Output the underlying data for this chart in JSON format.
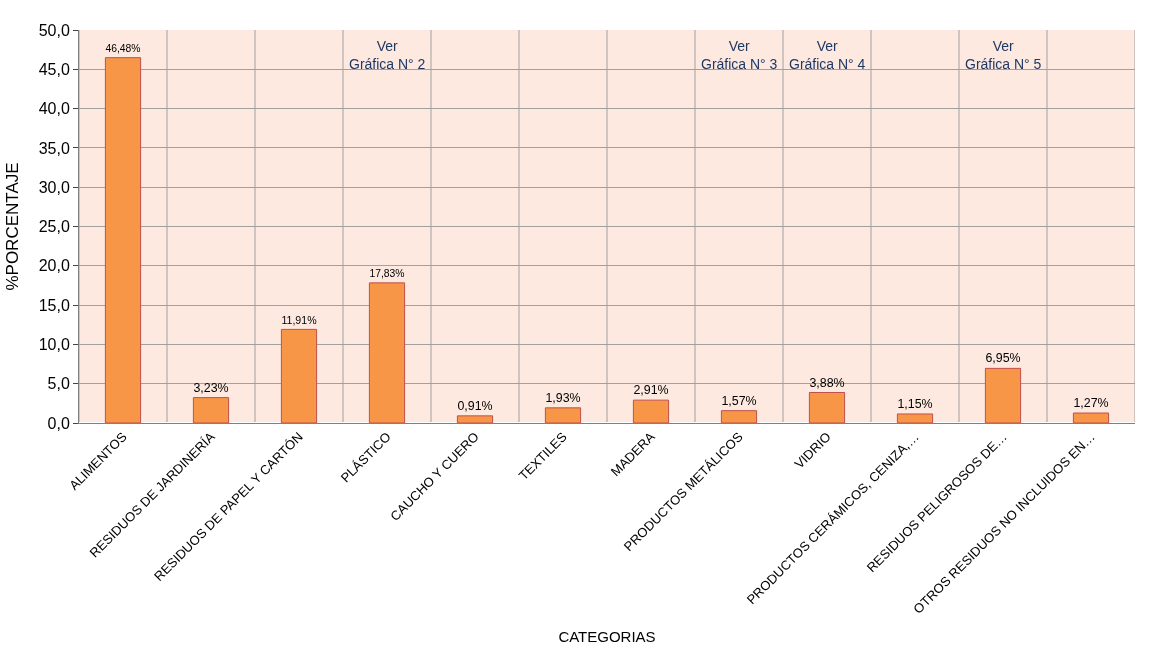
{
  "chart_data": {
    "type": "bar",
    "xlabel": "CATEGORIAS",
    "ylabel": "%PORCENTAJE",
    "categories": [
      "ALIMENTOS",
      "RESIDUOS DE JARDINERÍA",
      "RESIDUOS DE PAPEL Y CARTÓN",
      "PLÁSTICO",
      "CAUCHO Y CUERO",
      "TEXTILES",
      "MADERA",
      "PRODUCTOS METÁLICOS",
      "VIDRIO",
      "PRODUCTOS CERÁMICOS, CENIZA,…",
      "RESIDUOS PELIGROSOS DE…",
      "OTROS RESIDUOS NO INCLUIDOS EN…"
    ],
    "values": [
      46.48,
      3.23,
      11.91,
      17.83,
      0.91,
      1.93,
      2.91,
      1.57,
      3.88,
      1.15,
      6.95,
      1.27
    ],
    "value_labels": [
      "46,48%",
      "3,23%",
      "11,91%",
      "17,83%",
      "0,91%",
      "1,93%",
      "2,91%",
      "1,57%",
      "3,88%",
      "1,15%",
      "6,95%",
      "1,27%"
    ],
    "color": "#f79646",
    "ylim": [
      0,
      50
    ],
    "yticks": [
      {
        "value": 0,
        "label": "0,0"
      },
      {
        "value": 5,
        "label": "5,0"
      },
      {
        "value": 10,
        "label": "10,0"
      },
      {
        "value": 15,
        "label": "15,0"
      },
      {
        "value": 20,
        "label": "20,0"
      },
      {
        "value": 25,
        "label": "25,0"
      },
      {
        "value": 30,
        "label": "30,0"
      },
      {
        "value": 35,
        "label": "35,0"
      },
      {
        "value": 40,
        "label": "40,0"
      },
      {
        "value": 45,
        "label": "45,0"
      },
      {
        "value": 50,
        "label": "50,0"
      }
    ],
    "grid": true,
    "annotations": [
      "Ver\nGráfica N° 2",
      "Ver\nGráfica N° 3",
      "Ver\nGráfica N° 4",
      "Ver\nGráfica N° 5"
    ]
  }
}
